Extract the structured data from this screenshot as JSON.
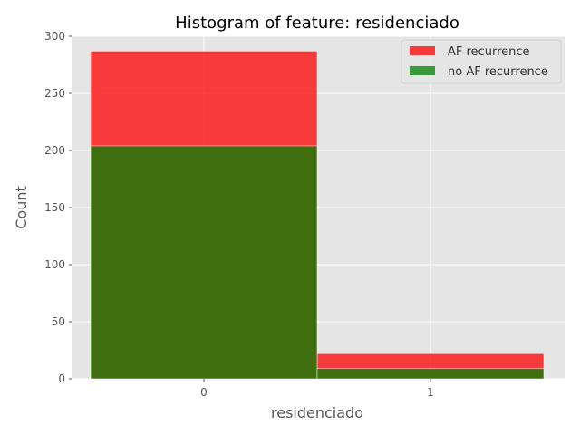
{
  "chart_data": {
    "type": "bar",
    "title": "Histogram of feature: residenciado",
    "xlabel": "residenciado",
    "ylabel": "Count",
    "categories": [
      "0",
      "1"
    ],
    "series": [
      {
        "name": "AF recurrence",
        "values": [
          287,
          22
        ],
        "color": "#ff0000",
        "alpha": 0.75
      },
      {
        "name": "no AF recurrence",
        "values": [
          204,
          9
        ],
        "color": "#008000",
        "alpha": 0.75
      }
    ],
    "yticks": [
      0,
      50,
      100,
      150,
      200,
      250,
      300
    ],
    "ylim": [
      0,
      300
    ],
    "grid": true,
    "legend": "top-right",
    "background": "#e5e5e5"
  }
}
